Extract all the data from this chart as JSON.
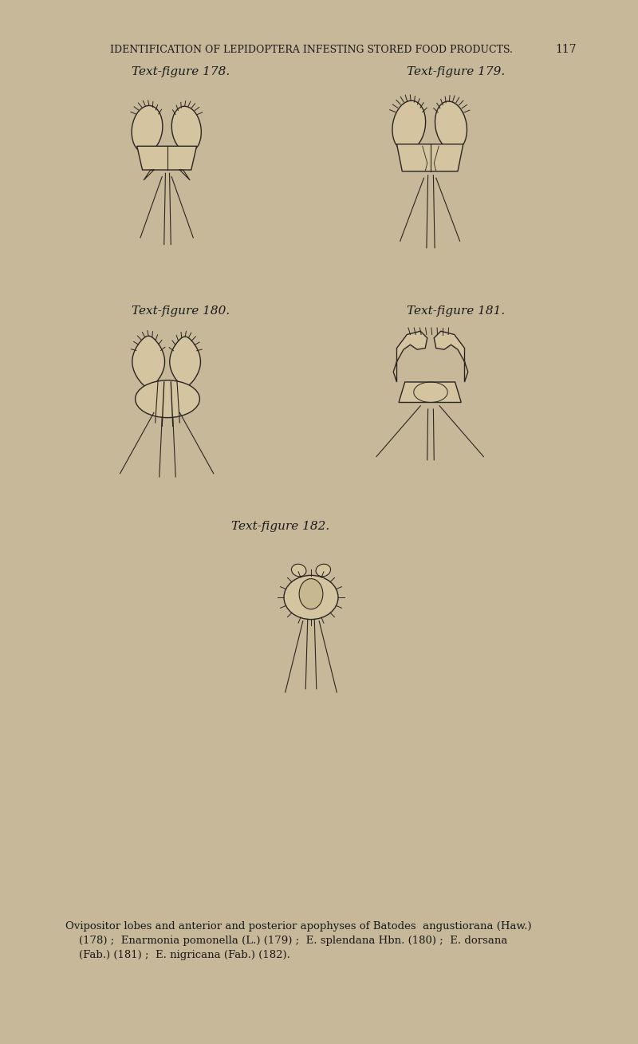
{
  "background_color": "#c8b89a",
  "header_text": "IDENTIFICATION OF LEPIDOPTERA INFESTING STORED FOOD PRODUCTS.",
  "page_number": "117",
  "header_fontsize": 9,
  "figure_labels": [
    "Text-figure 178.",
    "Text-figure 179.",
    "Text-figure 180.",
    "Text-figure 181.",
    "Text-figure 182."
  ],
  "caption_line1": "Ovipositor lobes and anterior and posterior apophyses of Batodes  angustiorana (Haw.)",
  "caption_line2": "    (178) ;  Enarmonia pomonella (L.) (179) ;  E. splendana Hbn. (180) ;  E. dorsana",
  "caption_line3": "    (Fab.) (181) ;  E. nigricana (Fab.) (182).",
  "caption_fontsize": 9.5,
  "label_fontsize": 11,
  "text_color": "#1a1a1a",
  "ink_color": "#2a2520",
  "lobe_color": "#d4c4a0",
  "lobe_color2": "#c8b890"
}
